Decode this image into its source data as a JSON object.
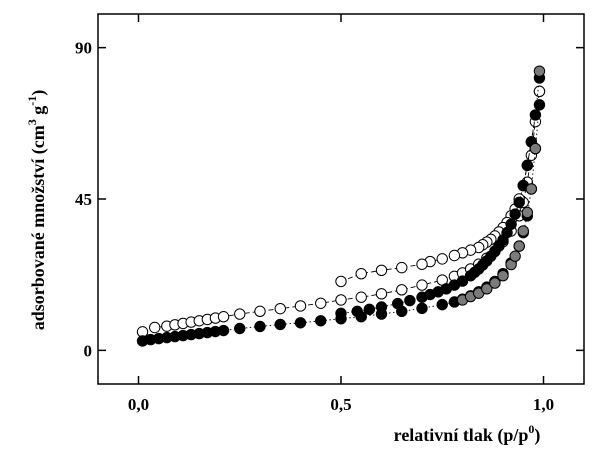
{
  "chart_data": {
    "type": "scatter",
    "xlabel": {
      "base": "relativní tlak (p/p",
      "sup": "0",
      "end": ")"
    },
    "ylabel": {
      "base": "adsorbované množství (cm",
      "sup1": "3",
      "mid": " g",
      "sup2": "-1",
      "end": ")"
    },
    "xlim": [
      -0.1,
      1.1
    ],
    "ylim": [
      -10,
      100
    ],
    "xticks": [
      0,
      0.5,
      1.0
    ],
    "xtick_labels": [
      "0,0",
      "0,5",
      "1,0"
    ],
    "yticks": [
      0,
      45,
      90
    ],
    "ytick_labels": [
      "0",
      "45",
      "90"
    ],
    "series": [
      {
        "marker": "open",
        "fill": "#ffffff",
        "line": "dashed",
        "x": [
          0.01,
          0.04,
          0.07,
          0.09,
          0.11,
          0.13,
          0.15,
          0.17,
          0.19,
          0.21,
          0.25,
          0.3,
          0.35,
          0.4,
          0.45,
          0.5,
          0.55,
          0.6,
          0.65,
          0.7,
          0.75,
          0.78,
          0.8,
          0.82,
          0.84,
          0.86,
          0.88,
          0.9,
          0.92,
          0.94,
          0.95,
          0.96,
          0.97,
          0.98,
          0.99
        ],
        "y": [
          5.5,
          6.8,
          7.2,
          7.6,
          8.0,
          8.4,
          8.8,
          9.2,
          9.6,
          10.0,
          10.8,
          11.6,
          12.4,
          13.2,
          14.0,
          15.0,
          15.8,
          16.8,
          18.0,
          19.4,
          20.9,
          22.0,
          23.0,
          24.2,
          25.6,
          27.4,
          29.5,
          32.3,
          35.5,
          40.0,
          44.0,
          50.0,
          58.0,
          68.0,
          77.0
        ]
      },
      {
        "marker": "open",
        "fill": "#ffffff",
        "line": "dashed",
        "x": [
          0.99,
          0.97,
          0.96,
          0.95,
          0.94,
          0.93,
          0.92,
          0.91,
          0.9,
          0.89,
          0.88,
          0.87,
          0.86,
          0.85,
          0.84,
          0.82,
          0.8,
          0.78,
          0.75,
          0.72,
          0.7,
          0.65,
          0.6,
          0.55,
          0.5
        ],
        "y": [
          77.0,
          62.0,
          55.0,
          49.0,
          45.0,
          42.0,
          40.0,
          38.0,
          36.5,
          35.2,
          34.0,
          33.0,
          32.2,
          31.4,
          30.6,
          29.8,
          29.0,
          28.2,
          27.2,
          26.4,
          25.6,
          24.6,
          23.8,
          22.8,
          20.5
        ]
      },
      {
        "marker": "filled",
        "fill": "#000000",
        "line": "dotted",
        "x": [
          0.01,
          0.03,
          0.05,
          0.07,
          0.09,
          0.11,
          0.13,
          0.15,
          0.17,
          0.19,
          0.21,
          0.25,
          0.3,
          0.35,
          0.4,
          0.45,
          0.5,
          0.55,
          0.6,
          0.65,
          0.7,
          0.75,
          0.78,
          0.8,
          0.82,
          0.84,
          0.86,
          0.88,
          0.9,
          0.92,
          0.94,
          0.95,
          0.96,
          0.97,
          0.98,
          0.99
        ],
        "y": [
          2.8,
          3.2,
          3.5,
          3.8,
          4.1,
          4.4,
          4.7,
          5.0,
          5.3,
          5.6,
          5.9,
          6.5,
          7.1,
          7.7,
          8.2,
          8.8,
          9.4,
          10.0,
          10.8,
          11.6,
          12.5,
          13.6,
          14.4,
          15.2,
          16.2,
          17.4,
          18.8,
          20.5,
          22.8,
          26.0,
          31.0,
          35.0,
          40.0,
          48.0,
          60.0,
          73.0
        ]
      },
      {
        "marker": "filled",
        "fill": "#000000",
        "line": "dotted",
        "x": [
          0.99,
          0.98,
          0.97,
          0.96,
          0.95,
          0.94,
          0.93,
          0.92,
          0.91,
          0.9,
          0.89,
          0.88,
          0.87,
          0.86,
          0.85,
          0.84,
          0.83,
          0.82,
          0.8,
          0.78,
          0.76,
          0.74,
          0.72,
          0.7,
          0.67,
          0.64,
          0.6,
          0.57,
          0.54,
          0.5
        ],
        "y": [
          81.0,
          70.0,
          62.0,
          55.0,
          49.0,
          44.0,
          40.5,
          37.5,
          35.0,
          32.8,
          31.0,
          29.4,
          28.0,
          26.6,
          25.4,
          24.2,
          23.2,
          22.2,
          20.6,
          19.4,
          18.3,
          17.4,
          16.6,
          15.8,
          14.8,
          13.9,
          12.9,
          12.2,
          11.6,
          11.0
        ]
      },
      {
        "marker": "gray",
        "fill": "#7a7a7a",
        "line": "none",
        "x": [
          0.8,
          0.82,
          0.84,
          0.86,
          0.88,
          0.9,
          0.92,
          0.93,
          0.94,
          0.95,
          0.96,
          0.97,
          0.98,
          0.99
        ],
        "y": [
          15.0,
          16.0,
          17.0,
          18.3,
          20.0,
          22.2,
          25.5,
          28.0,
          31.0,
          35.5,
          41.0,
          48.0,
          60.0,
          83.0
        ]
      }
    ]
  }
}
